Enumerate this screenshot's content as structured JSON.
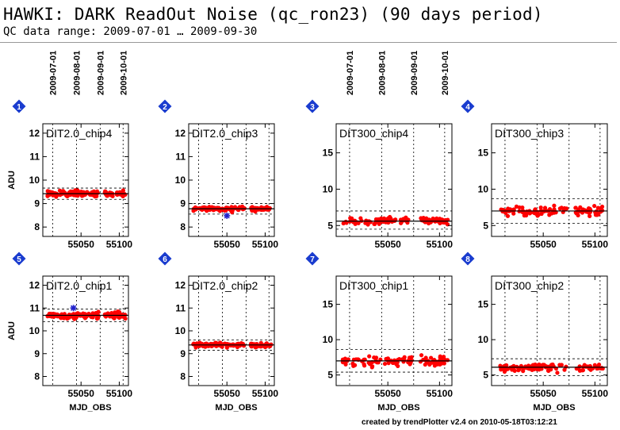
{
  "header": {
    "title": "HAWKI: DARK ReadOut Noise (qc_ron23) (90 days period)",
    "subtitle": "QC data range: 2009-07-01 … 2009-09-30"
  },
  "footer": {
    "credit": "created by trendPlotter v2.4 on 2010-05-18T03:12:21"
  },
  "colors": {
    "points": "#ff0000",
    "outliers": "#2222cc",
    "badge": "#1a3ccf",
    "frame": "#000000"
  },
  "date_axis": {
    "ticks": [
      {
        "label": "2009-07-01",
        "mjd": 55013
      },
      {
        "label": "2009-08-01",
        "mjd": 55044
      },
      {
        "label": "2009-09-01",
        "mjd": 55075
      },
      {
        "label": "2009-10-01",
        "mjd": 55105
      }
    ]
  },
  "x_axis": {
    "label": "MJD_OBS",
    "range": [
      55000,
      55112
    ],
    "ticks": [
      55050,
      55100
    ]
  },
  "chart_data": [
    {
      "index": "1",
      "type": "scatter",
      "title": "DIT2.0_chip4",
      "ylabel": "ADU",
      "ylim": [
        7.6,
        12.4
      ],
      "yticks": [
        8,
        9,
        10,
        11,
        12
      ],
      "mean": 9.42,
      "band": [
        9.18,
        9.66
      ],
      "scatter_sd": 0.09,
      "point_count": 140,
      "outliers": []
    },
    {
      "index": "2",
      "type": "scatter",
      "title": "DIT2.0_chip3",
      "ylabel": "",
      "ylim": [
        7.6,
        12.4
      ],
      "yticks": [
        8,
        9,
        10,
        11,
        12
      ],
      "mean": 8.78,
      "band": [
        8.55,
        9.0
      ],
      "scatter_sd": 0.07,
      "point_count": 140,
      "outliers": [
        {
          "x": 55050,
          "y": 8.48
        }
      ]
    },
    {
      "index": "3",
      "type": "scatter",
      "title": "DIT300_chip4",
      "ylabel": "",
      "ylim": [
        3.5,
        19
      ],
      "yticks": [
        5,
        10,
        15
      ],
      "mean": 5.6,
      "band": [
        4.5,
        7.0
      ],
      "scatter_sd": 0.35,
      "point_count": 110,
      "outliers": []
    },
    {
      "index": "4",
      "type": "scatter",
      "title": "DIT300_chip3",
      "ylabel": "",
      "ylim": [
        3.5,
        19
      ],
      "yticks": [
        5,
        10,
        15
      ],
      "mean": 7.0,
      "band": [
        5.3,
        8.7
      ],
      "scatter_sd": 0.45,
      "point_count": 110,
      "outliers": []
    },
    {
      "index": "5",
      "type": "scatter",
      "title": "DIT2.0_chip1",
      "ylabel": "ADU",
      "ylim": [
        7.6,
        12.4
      ],
      "yticks": [
        8,
        9,
        10,
        11,
        12
      ],
      "mean": 10.68,
      "band": [
        10.4,
        10.95
      ],
      "scatter_sd": 0.09,
      "point_count": 140,
      "outliers": [
        {
          "x": 55040,
          "y": 11.0
        }
      ]
    },
    {
      "index": "6",
      "type": "scatter",
      "title": "DIT2.0_chip2",
      "ylabel": "",
      "ylim": [
        7.6,
        12.4
      ],
      "yticks": [
        8,
        9,
        10,
        11,
        12
      ],
      "mean": 9.38,
      "band": [
        9.15,
        9.6
      ],
      "scatter_sd": 0.07,
      "point_count": 140,
      "outliers": []
    },
    {
      "index": "7",
      "type": "scatter",
      "title": "DIT300_chip1",
      "ylabel": "",
      "ylim": [
        3.5,
        19
      ],
      "yticks": [
        5,
        10,
        15
      ],
      "mean": 7.0,
      "band": [
        5.4,
        8.6
      ],
      "scatter_sd": 0.5,
      "point_count": 110,
      "outliers": []
    },
    {
      "index": "8",
      "type": "scatter",
      "title": "DIT300_chip2",
      "ylabel": "",
      "ylim": [
        3.5,
        19
      ],
      "yticks": [
        5,
        10,
        15
      ],
      "mean": 6.1,
      "band": [
        4.9,
        7.3
      ],
      "scatter_sd": 0.35,
      "point_count": 110,
      "outliers": []
    }
  ]
}
